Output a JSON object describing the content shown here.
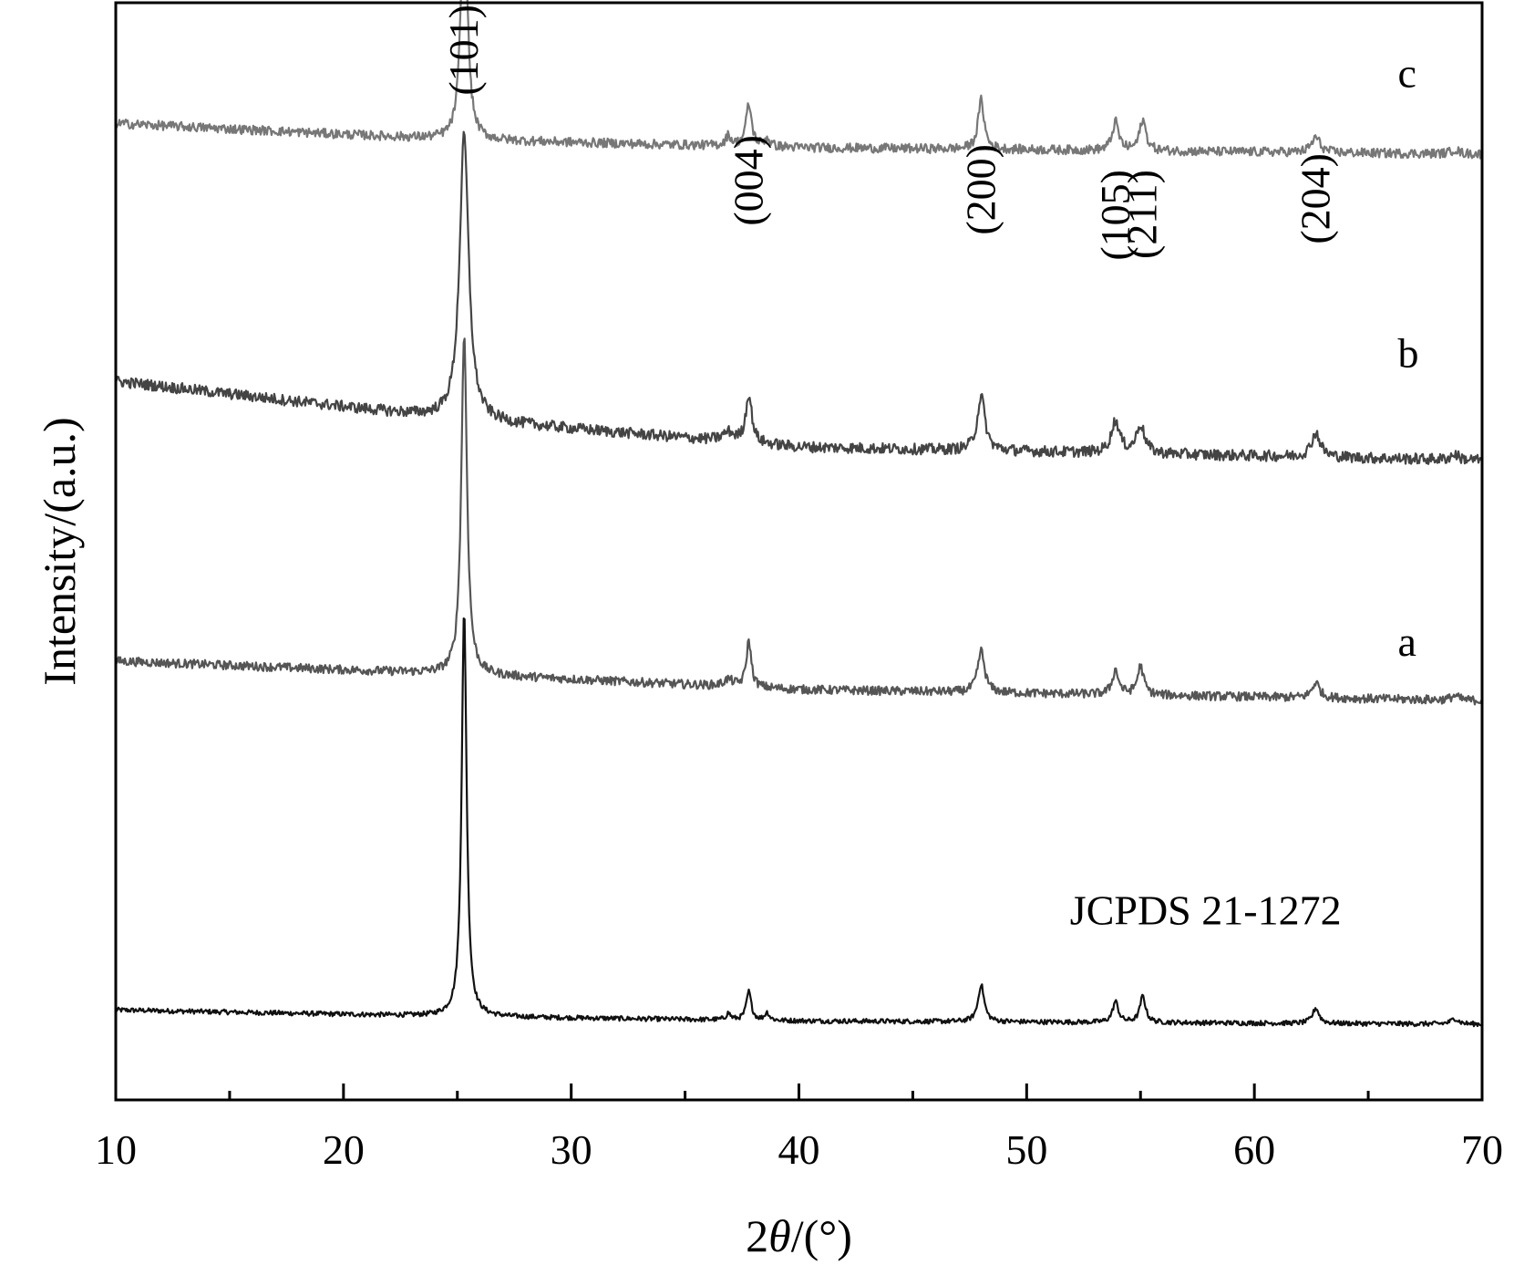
{
  "chart_data": {
    "type": "line",
    "title": "",
    "xlabel": {
      "prefix": "2",
      "symbol": "θ",
      "suffix": "/(°)"
    },
    "ylabel": "Intensity/(a.u.)",
    "xlim": [
      10,
      70
    ],
    "xticks": [
      10,
      20,
      30,
      40,
      50,
      60,
      70
    ],
    "xticks_minor": [
      15,
      25,
      35,
      45,
      55,
      65
    ],
    "grid": false,
    "legend": "none",
    "peak_labels": [
      {
        "text": "(101)",
        "x": 25.3
      },
      {
        "text": "(004)",
        "x": 37.8
      },
      {
        "text": "(200)",
        "x": 48.0
      },
      {
        "text": "(105)",
        "x": 53.9
      },
      {
        "text": "(211)",
        "x": 55.1
      },
      {
        "text": "(204)",
        "x": 62.7
      }
    ],
    "series": [
      {
        "name": "JCPDS 21-1272",
        "color": "#111111",
        "baseline": [
          [
            10,
            8.2
          ],
          [
            25,
            7.6
          ],
          [
            40,
            7.2
          ],
          [
            70,
            6.9
          ]
        ],
        "noise": 0.22,
        "peaks": [
          [
            25.3,
            37.0,
            0.13
          ],
          [
            36.9,
            0.6,
            0.12
          ],
          [
            37.8,
            2.6,
            0.13
          ],
          [
            38.6,
            0.7,
            0.12
          ],
          [
            48.0,
            3.4,
            0.16
          ],
          [
            53.9,
            1.9,
            0.15
          ],
          [
            55.1,
            2.4,
            0.15
          ],
          [
            62.7,
            1.4,
            0.17
          ],
          [
            68.8,
            0.5,
            0.2
          ]
        ]
      },
      {
        "name": "a",
        "color": "#555555",
        "baseline": [
          [
            10,
            40.0
          ],
          [
            25,
            38.8
          ],
          [
            40,
            37.4
          ],
          [
            70,
            36.4
          ]
        ],
        "noise": 0.4,
        "peaks": [
          [
            25.3,
            31.0,
            0.15
          ],
          [
            36.9,
            0.6,
            0.25
          ],
          [
            37.8,
            4.2,
            0.13
          ],
          [
            48.0,
            3.8,
            0.18
          ],
          [
            53.9,
            2.2,
            0.17
          ],
          [
            55.0,
            2.6,
            0.17
          ],
          [
            62.7,
            1.4,
            0.2
          ],
          [
            68.8,
            0.4,
            0.2
          ]
        ]
      },
      {
        "name": "b",
        "color": "#444444",
        "baseline": [
          [
            10,
            65.5
          ],
          [
            25,
            62.0
          ],
          [
            40,
            59.5
          ],
          [
            70,
            58.3
          ]
        ],
        "noise": 0.5,
        "peaks": [
          [
            25.3,
            26.0,
            0.24
          ],
          [
            36.9,
            0.8,
            0.3
          ],
          [
            37.8,
            4.4,
            0.16
          ],
          [
            48.0,
            5.0,
            0.2
          ],
          [
            53.9,
            2.9,
            0.22
          ],
          [
            55.0,
            2.6,
            0.22
          ],
          [
            62.7,
            2.2,
            0.24
          ],
          [
            68.8,
            0.5,
            0.2
          ]
        ]
      },
      {
        "name": "c",
        "color": "#777777",
        "baseline": [
          [
            10,
            89.0
          ],
          [
            25,
            87.5
          ],
          [
            40,
            86.8
          ],
          [
            70,
            86.2
          ]
        ],
        "noise": 0.42,
        "peaks": [
          [
            25.3,
            23.5,
            0.16
          ],
          [
            36.9,
            0.9,
            0.15
          ],
          [
            37.8,
            3.8,
            0.15
          ],
          [
            38.6,
            0.7,
            0.15
          ],
          [
            48.0,
            4.5,
            0.16
          ],
          [
            53.9,
            2.6,
            0.17
          ],
          [
            55.1,
            2.8,
            0.17
          ],
          [
            62.7,
            1.4,
            0.22
          ],
          [
            68.8,
            0.4,
            0.2
          ]
        ]
      }
    ],
    "series_labels": [
      {
        "text": "JCPDS 21-1272",
        "x": 51.9,
        "y": 16.0
      },
      {
        "text": "a",
        "x": 66.3,
        "y": 40.5
      },
      {
        "text": "b",
        "x": 66.3,
        "y": 66.8
      },
      {
        "text": "c",
        "x": 66.3,
        "y": 92.3
      }
    ]
  }
}
